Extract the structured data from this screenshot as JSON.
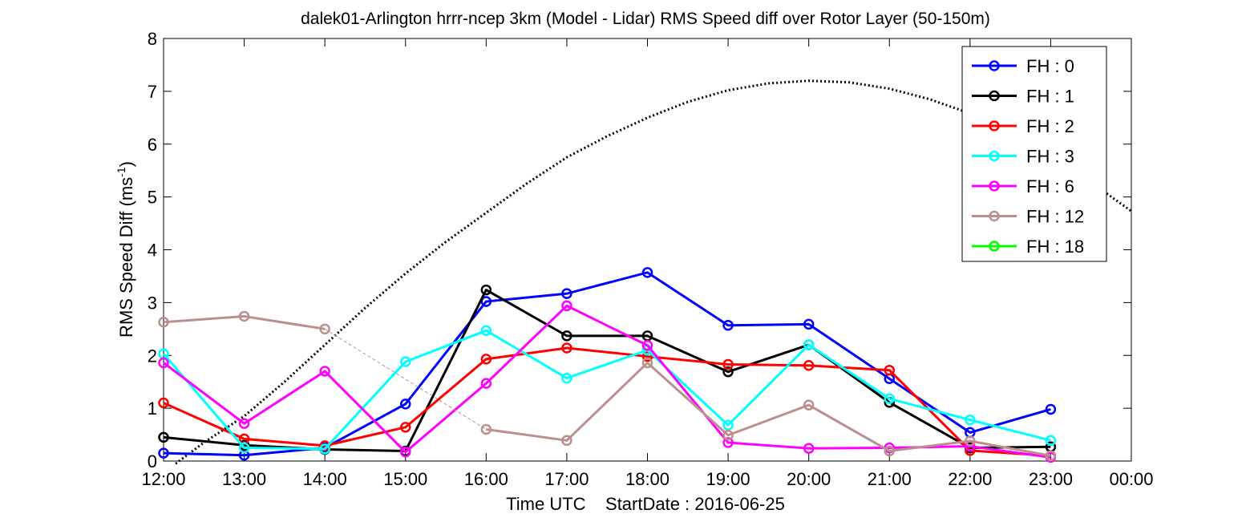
{
  "chart_data": {
    "type": "line",
    "title": "dalek01-Arlington hrrr-ncep 3km (Model - Lidar) RMS Speed diff over Rotor Layer (50-150m)",
    "ylabel": "RMS Speed Diff (ms",
    "ylabel_sup": "-1",
    "ylabel_close": ")",
    "xlabel": "Time UTC    StartDate : 2016-06-25",
    "x_ticks": [
      "12:00",
      "13:00",
      "14:00",
      "15:00",
      "16:00",
      "17:00",
      "18:00",
      "19:00",
      "20:00",
      "21:00",
      "22:00",
      "23:00",
      "00:00"
    ],
    "y_ticks": [
      "0",
      "1",
      "2",
      "3",
      "4",
      "5",
      "6",
      "7",
      "8"
    ],
    "xlim_hours": [
      12,
      24
    ],
    "ylim": [
      0,
      8
    ],
    "grid": false,
    "legend_position": "top-right",
    "series": [
      {
        "name": "FH : 0",
        "color": "#0000ff",
        "values": [
          0.15,
          0.11,
          0.25,
          1.08,
          3.02,
          3.17,
          3.57,
          2.57,
          2.59,
          1.56,
          0.54,
          0.98
        ],
        "segments": "solid"
      },
      {
        "name": "FH : 1",
        "color": "#000000",
        "values": [
          0.45,
          0.3,
          0.22,
          0.19,
          3.24,
          2.37,
          2.37,
          1.69,
          2.2,
          1.11,
          0.25,
          0.27
        ],
        "segments": "solid"
      },
      {
        "name": "FH : 2",
        "color": "#ff0000",
        "values": [
          1.1,
          0.42,
          0.29,
          0.64,
          1.93,
          2.14,
          1.98,
          1.83,
          1.81,
          1.72,
          0.2,
          0.1
        ],
        "segments": "solid"
      },
      {
        "name": "FH : 3",
        "color": "#00ffff",
        "values": [
          2.03,
          0.25,
          0.23,
          1.88,
          2.47,
          1.57,
          2.1,
          0.68,
          2.2,
          1.18,
          0.78,
          0.39
        ],
        "segments": "solid"
      },
      {
        "name": "FH : 6",
        "color": "#ff00ff",
        "values": [
          1.86,
          0.71,
          1.7,
          0.17,
          1.47,
          2.94,
          2.19,
          0.35,
          0.24,
          0.25,
          0.28,
          0.07
        ],
        "segments": "solid"
      },
      {
        "name": "FH : 12",
        "color": "#bc8f8f",
        "values": [
          2.63,
          2.74,
          2.5,
          null,
          0.6,
          0.39,
          1.86,
          0.49,
          1.06,
          0.19,
          0.38,
          0.1
        ],
        "segments": "solid-with-gap",
        "gap_dashed": [
          2,
          4
        ]
      },
      {
        "name": "FH : 18",
        "color": "#00ff00",
        "values": [],
        "segments": "solid"
      }
    ],
    "reference_curve": {
      "style": "dotted",
      "color": "#000000",
      "x_hours": [
        12.15,
        12.5,
        13,
        13.5,
        14,
        14.5,
        15,
        15.5,
        16,
        16.5,
        17,
        17.5,
        18,
        18.5,
        19,
        19.5,
        20,
        20.5,
        21,
        21.5,
        22,
        22.5,
        23,
        23.5,
        24
      ],
      "values": [
        -0.05,
        0.35,
        0.85,
        1.5,
        2.2,
        2.9,
        3.55,
        4.15,
        4.7,
        5.25,
        5.75,
        6.15,
        6.5,
        6.8,
        7.02,
        7.15,
        7.2,
        7.17,
        7.05,
        6.85,
        6.58,
        6.22,
        5.78,
        5.28,
        4.73
      ]
    }
  }
}
